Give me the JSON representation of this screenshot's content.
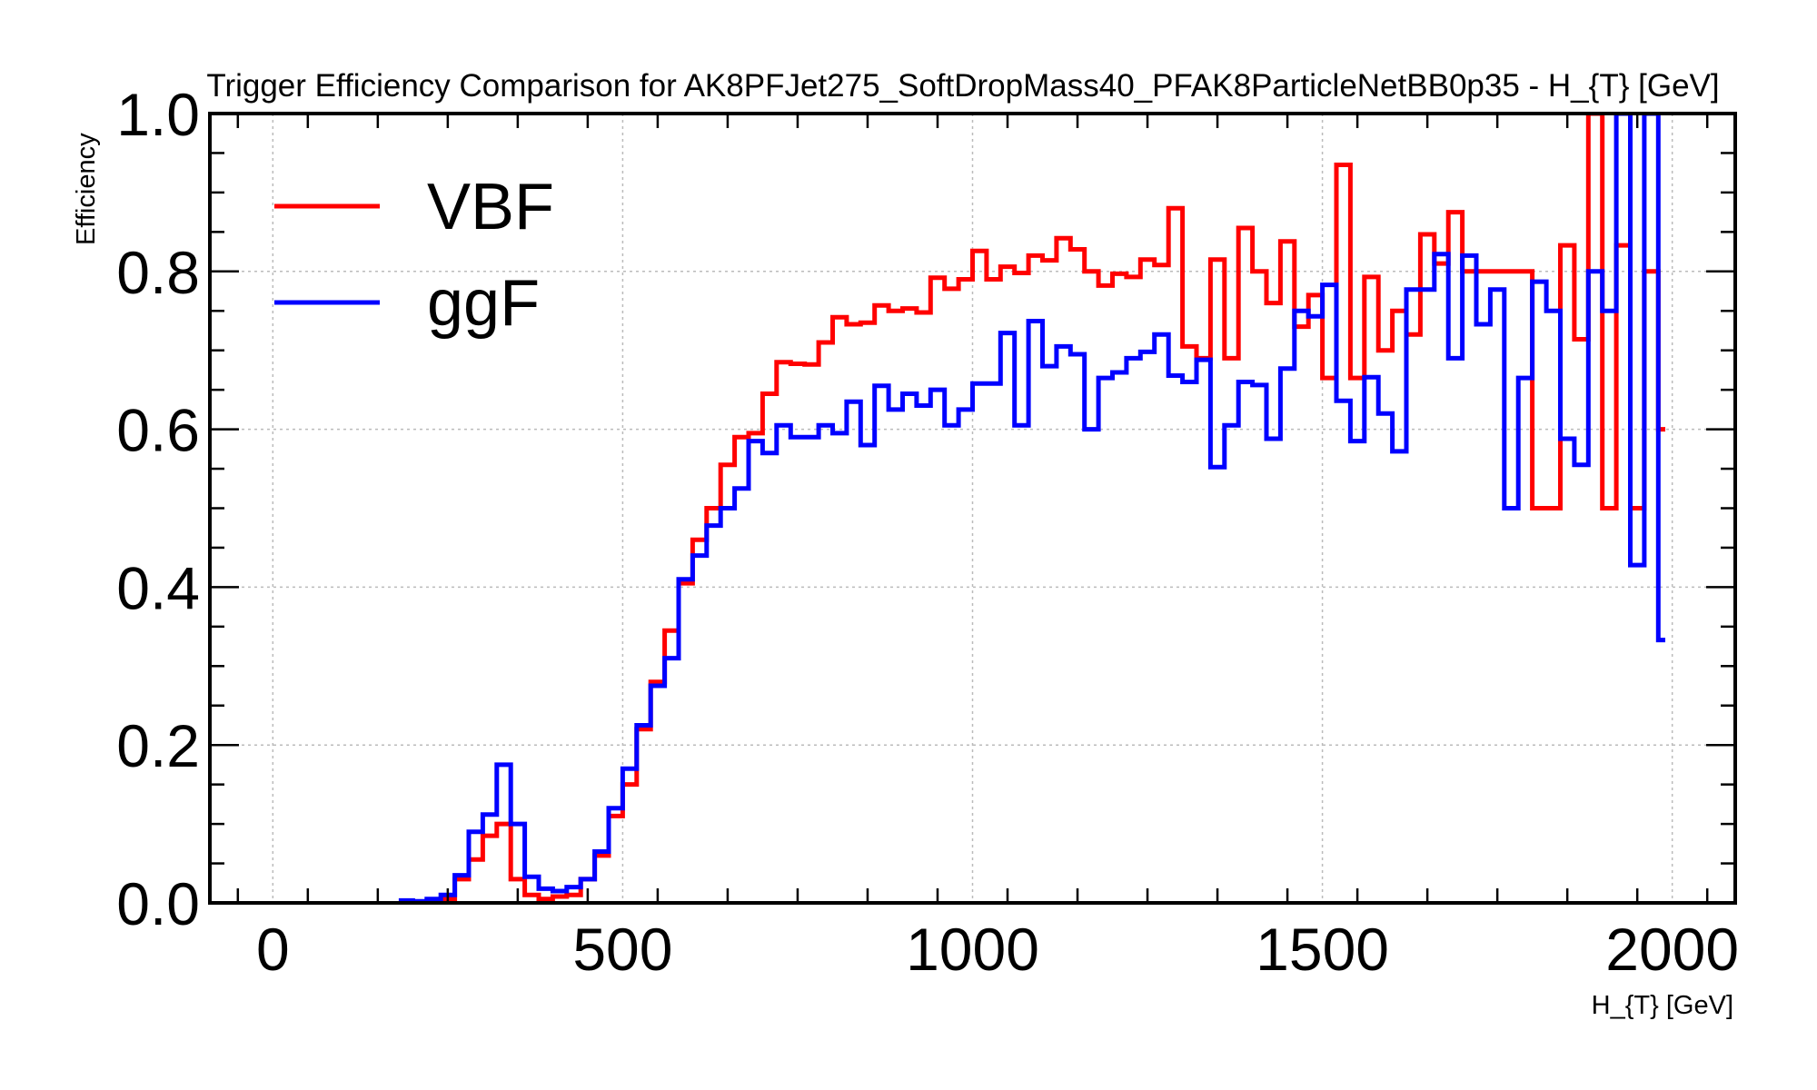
{
  "chart_data": {
    "type": "line",
    "step": true,
    "title": "Trigger Efficiency Comparison for AK8PFJet275_SoftDropMass40_PFAK8ParticleNetBB0p35 - H_{T} [GeV]",
    "xlabel": "H_{T} [GeV]",
    "ylabel": "Efficiency",
    "xlim": [
      -90,
      2090
    ],
    "ylim": [
      0,
      1
    ],
    "grid": true,
    "legend_position": "top-left",
    "x_ticks": [
      0,
      500,
      1000,
      1500,
      2000
    ],
    "y_ticks": [
      0.0,
      0.2,
      0.4,
      0.6,
      0.8,
      1.0
    ],
    "bin_edges": [
      180,
      200,
      220,
      240,
      260,
      280,
      300,
      320,
      340,
      360,
      380,
      400,
      420,
      440,
      460,
      480,
      500,
      520,
      540,
      560,
      580,
      600,
      620,
      640,
      660,
      680,
      700,
      720,
      740,
      760,
      780,
      800,
      820,
      840,
      860,
      880,
      900,
      920,
      940,
      960,
      980,
      1000,
      1020,
      1040,
      1060,
      1080,
      1100,
      1120,
      1140,
      1160,
      1180,
      1200,
      1220,
      1240,
      1260,
      1280,
      1300,
      1320,
      1340,
      1360,
      1380,
      1400,
      1420,
      1440,
      1460,
      1480,
      1500,
      1520,
      1540,
      1560,
      1580,
      1600,
      1620,
      1640,
      1660,
      1680,
      1700,
      1720,
      1740,
      1760,
      1780,
      1800,
      1820,
      1840,
      1860,
      1880,
      1900,
      1920,
      1940,
      1960,
      1980,
      2000
    ],
    "series": [
      {
        "name": "VBF",
        "color": "#ff0000",
        "values": [
          0.0,
          0.0,
          0.0,
          0.005,
          0.03,
          0.055,
          0.085,
          0.1,
          0.03,
          0.01,
          0.005,
          0.008,
          0.01,
          0.03,
          0.06,
          0.11,
          0.15,
          0.22,
          0.28,
          0.345,
          0.405,
          0.46,
          0.5,
          0.555,
          0.59,
          0.595,
          0.645,
          0.685,
          0.683,
          0.682,
          0.71,
          0.742,
          0.733,
          0.735,
          0.757,
          0.75,
          0.753,
          0.748,
          0.792,
          0.778,
          0.79,
          0.826,
          0.79,
          0.806,
          0.798,
          0.82,
          0.814,
          0.842,
          0.828,
          0.8,
          0.782,
          0.797,
          0.793,
          0.815,
          0.808,
          0.88,
          0.705,
          0.69,
          0.815,
          0.69,
          0.855,
          0.8,
          0.76,
          0.838,
          0.73,
          0.77,
          0.665,
          0.935,
          0.665,
          0.793,
          0.7,
          0.75,
          0.72,
          0.847,
          0.81,
          0.875,
          0.8,
          0.8,
          0.8,
          0.8,
          0.8,
          0.5,
          0.5,
          0.833,
          0.714,
          1.0,
          0.5,
          0.833,
          0.5,
          0.8,
          0.6
        ],
        "end_x": 1990
      },
      {
        "name": "ggF",
        "color": "#0000ff",
        "values": [
          0.003,
          0.002,
          0.005,
          0.01,
          0.035,
          0.09,
          0.112,
          0.175,
          0.1,
          0.033,
          0.018,
          0.015,
          0.02,
          0.03,
          0.065,
          0.12,
          0.17,
          0.225,
          0.275,
          0.31,
          0.41,
          0.44,
          0.478,
          0.5,
          0.525,
          0.585,
          0.57,
          0.605,
          0.59,
          0.59,
          0.605,
          0.595,
          0.635,
          0.58,
          0.655,
          0.625,
          0.645,
          0.63,
          0.65,
          0.605,
          0.625,
          0.658,
          0.658,
          0.722,
          0.605,
          0.737,
          0.68,
          0.705,
          0.695,
          0.6,
          0.665,
          0.672,
          0.69,
          0.698,
          0.72,
          0.668,
          0.66,
          0.688,
          0.552,
          0.605,
          0.66,
          0.656,
          0.588,
          0.677,
          0.75,
          0.743,
          0.783,
          0.636,
          0.585,
          0.666,
          0.62,
          0.572,
          0.777,
          0.777,
          0.822,
          0.69,
          0.82,
          0.733,
          0.777,
          0.5,
          0.665,
          0.787,
          0.75,
          0.588,
          0.555,
          0.8,
          0.75,
          1.0,
          0.428,
          1.0,
          0.333
        ],
        "end_x": 1990
      }
    ]
  }
}
